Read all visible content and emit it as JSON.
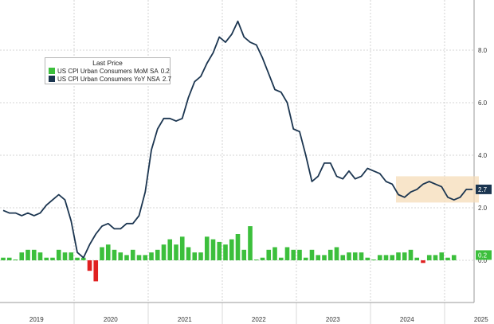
{
  "chart_data": {
    "type": "line",
    "legend_title": "Last Price",
    "legend_placement": "top-left",
    "x_tick_labels": [
      "2019",
      "2020",
      "2021",
      "2022",
      "2023",
      "2024",
      "2025"
    ],
    "y_tick_labels": [
      "0.0",
      "2.0",
      "4.0",
      "6.0",
      "8.0"
    ],
    "ylim": [
      -1.0,
      10.0
    ],
    "grid": true,
    "highlight_band": {
      "x_range": [
        "2024-05",
        "2025-05"
      ],
      "y_range": [
        2.2,
        3.2
      ],
      "color": "#f5dcb8"
    },
    "series": [
      {
        "name": "US CPI Urban Consumers MoM SA",
        "last_value": "0.2",
        "color": "#3cbf3c",
        "negative_color": "#e02020",
        "type": "bar",
        "values": [
          0.1,
          0.1,
          0.0,
          0.3,
          0.4,
          0.4,
          0.3,
          0.1,
          0.1,
          0.4,
          0.3,
          0.3,
          0.1,
          0.1,
          -0.4,
          -0.8,
          0.5,
          0.6,
          0.4,
          0.3,
          0.2,
          0.4,
          0.2,
          0.2,
          0.3,
          0.4,
          0.6,
          0.8,
          0.6,
          0.9,
          0.5,
          0.3,
          0.3,
          0.9,
          0.8,
          0.7,
          0.6,
          0.8,
          1.0,
          0.4,
          1.3,
          0.0,
          0.1,
          0.4,
          0.5,
          0.1,
          0.5,
          0.4,
          0.4,
          0.1,
          0.4,
          0.2,
          0.2,
          0.4,
          0.5,
          0.2,
          0.3,
          0.3,
          0.3,
          0.1,
          0.0,
          0.2,
          0.2,
          0.2,
          0.3,
          0.3,
          0.4,
          0.1,
          -0.1,
          0.2,
          0.2,
          0.3,
          0.1,
          0.2
        ]
      },
      {
        "name": "US CPI Urban Consumers YoY NSA",
        "last_value": "2.7",
        "color": "#1b3550",
        "type": "line",
        "values": [
          1.9,
          1.8,
          1.8,
          1.7,
          1.8,
          1.7,
          1.8,
          2.1,
          2.3,
          2.5,
          2.3,
          1.5,
          0.3,
          0.1,
          0.6,
          1.0,
          1.3,
          1.4,
          1.2,
          1.2,
          1.4,
          1.4,
          1.7,
          2.6,
          4.2,
          5.0,
          5.4,
          5.4,
          5.3,
          5.4,
          6.2,
          6.8,
          7.0,
          7.5,
          7.9,
          8.5,
          8.3,
          8.6,
          9.1,
          8.5,
          8.3,
          8.2,
          7.7,
          7.1,
          6.5,
          6.4,
          6.0,
          5.0,
          4.9,
          4.0,
          3.0,
          3.2,
          3.7,
          3.7,
          3.2,
          3.1,
          3.4,
          3.1,
          3.2,
          3.5,
          3.4,
          3.3,
          3.0,
          2.9,
          2.5,
          2.4,
          2.6,
          2.7,
          2.9,
          3.0,
          2.9,
          2.8,
          2.4,
          2.3,
          2.4,
          2.7,
          2.7
        ]
      }
    ]
  }
}
